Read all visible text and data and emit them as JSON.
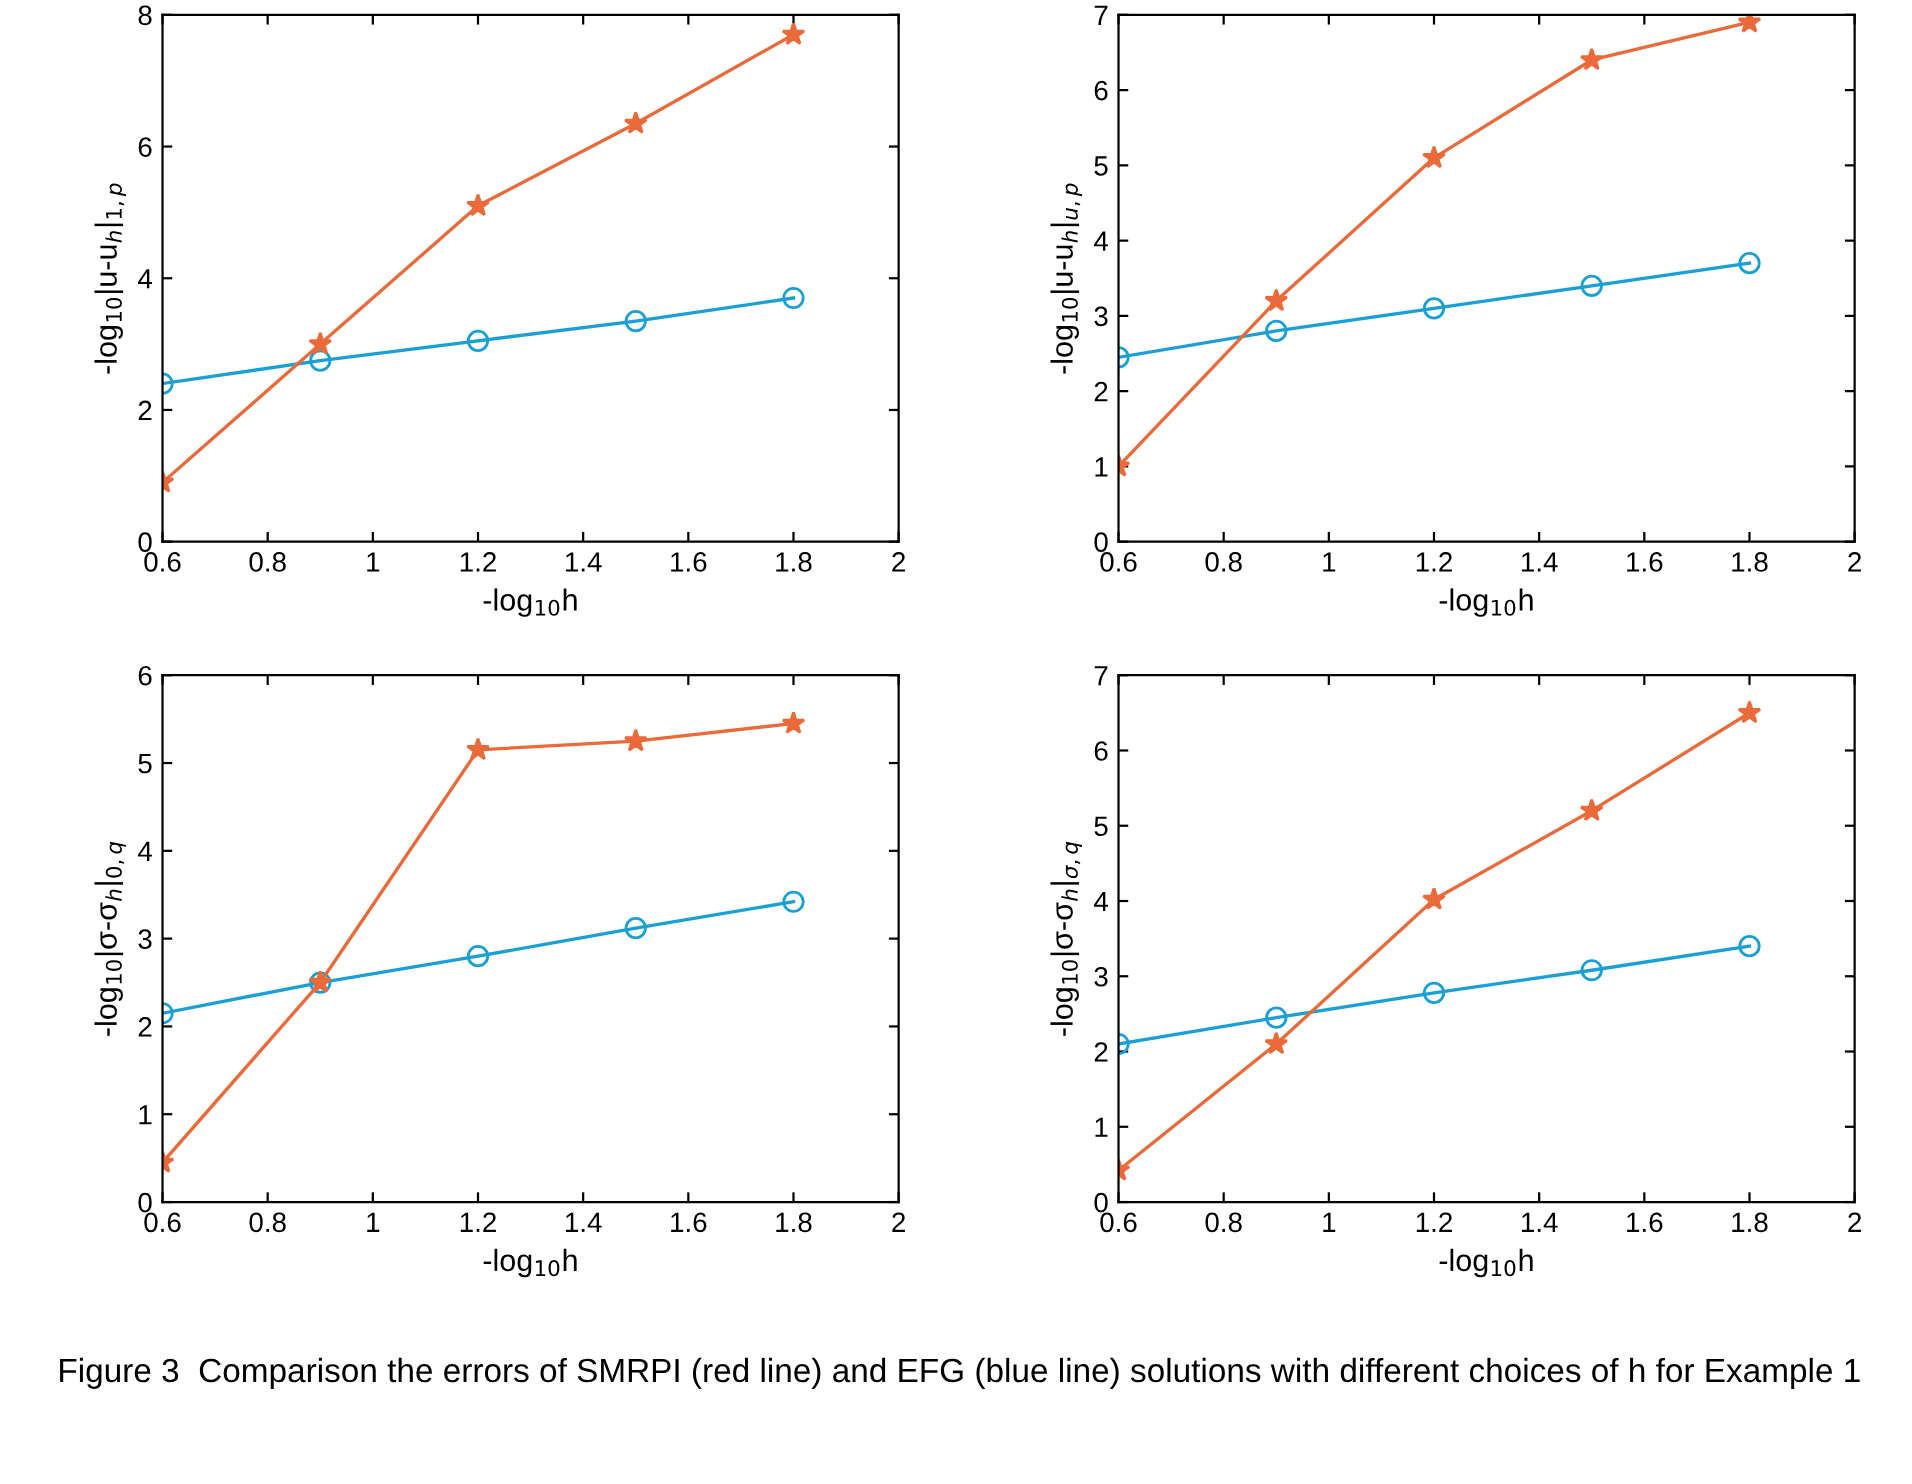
{
  "chart_data": [
    {
      "type": "line",
      "x": [
        0.6,
        0.9,
        1.2,
        1.5,
        1.8
      ],
      "xlabel": "-log$_{10}$h",
      "ylabel": "-log$_{10}$|u-u$_{h}$|$_{1,p}$",
      "xlim": [
        0.6,
        2
      ],
      "xticks": [
        0.6,
        0.8,
        1,
        1.2,
        1.4,
        1.6,
        1.8,
        2
      ],
      "ylim": [
        0,
        8
      ],
      "yticks": [
        0,
        2,
        4,
        6,
        8
      ],
      "grid": false,
      "series": [
        {
          "color": "#1a9fd6",
          "marker": "circle",
          "values": [
            2.4,
            2.75,
            3.05,
            3.35,
            3.7
          ]
        },
        {
          "color": "#ea6a3a",
          "marker": "star",
          "values": [
            0.9,
            3.0,
            5.1,
            6.35,
            7.7
          ]
        }
      ]
    },
    {
      "type": "line",
      "x": [
        0.6,
        0.9,
        1.2,
        1.5,
        1.8
      ],
      "xlabel": "-log$_{10}$h",
      "ylabel": "-log$_{10}$|u-u$_{h}$|$_{u,p}$",
      "xlim": [
        0.6,
        2
      ],
      "xticks": [
        0.6,
        0.8,
        1,
        1.2,
        1.4,
        1.6,
        1.8,
        2
      ],
      "ylim": [
        0,
        7
      ],
      "yticks": [
        0,
        1,
        2,
        3,
        4,
        5,
        6,
        7
      ],
      "grid": false,
      "series": [
        {
          "color": "#1a9fd6",
          "marker": "circle",
          "values": [
            2.45,
            2.8,
            3.1,
            3.4,
            3.7
          ]
        },
        {
          "color": "#ea6a3a",
          "marker": "star",
          "values": [
            1.0,
            3.2,
            5.1,
            6.4,
            6.9
          ]
        }
      ]
    },
    {
      "type": "line",
      "x": [
        0.6,
        0.9,
        1.2,
        1.5,
        1.8
      ],
      "xlabel": "-log$_{10}$h",
      "ylabel": "-log$_{10}$|σ-σ$_{h}$|$_{0,q}$",
      "xlim": [
        0.6,
        2
      ],
      "xticks": [
        0.6,
        0.8,
        1,
        1.2,
        1.4,
        1.6,
        1.8,
        2
      ],
      "ylim": [
        0,
        6
      ],
      "yticks": [
        0,
        1,
        2,
        3,
        4,
        5,
        6
      ],
      "grid": false,
      "series": [
        {
          "color": "#1a9fd6",
          "marker": "circle",
          "values": [
            2.15,
            2.5,
            2.8,
            3.12,
            3.42
          ]
        },
        {
          "color": "#ea6a3a",
          "marker": "star",
          "values": [
            0.45,
            2.5,
            5.15,
            5.25,
            5.45
          ]
        }
      ]
    },
    {
      "type": "line",
      "x": [
        0.6,
        0.9,
        1.2,
        1.5,
        1.8
      ],
      "xlabel": "-log$_{10}$h",
      "ylabel": "-log$_{10}$|σ-σ$_{h}$|$_{σ,q}$",
      "xlim": [
        0.6,
        2
      ],
      "xticks": [
        0.6,
        0.8,
        1,
        1.2,
        1.4,
        1.6,
        1.8,
        2
      ],
      "ylim": [
        0,
        7
      ],
      "yticks": [
        0,
        1,
        2,
        3,
        4,
        5,
        6,
        7
      ],
      "grid": false,
      "series": [
        {
          "color": "#1a9fd6",
          "marker": "circle",
          "values": [
            2.1,
            2.45,
            2.78,
            3.08,
            3.4
          ]
        },
        {
          "color": "#ea6a3a",
          "marker": "star",
          "values": [
            0.42,
            2.1,
            4.02,
            5.2,
            6.5
          ]
        }
      ],
      "annotations": [
        "Figure 3  Comparison the errors of SMRPI (red line) and EFG (blue line) solutions with different choices of h for Example 1"
      ]
    }
  ]
}
